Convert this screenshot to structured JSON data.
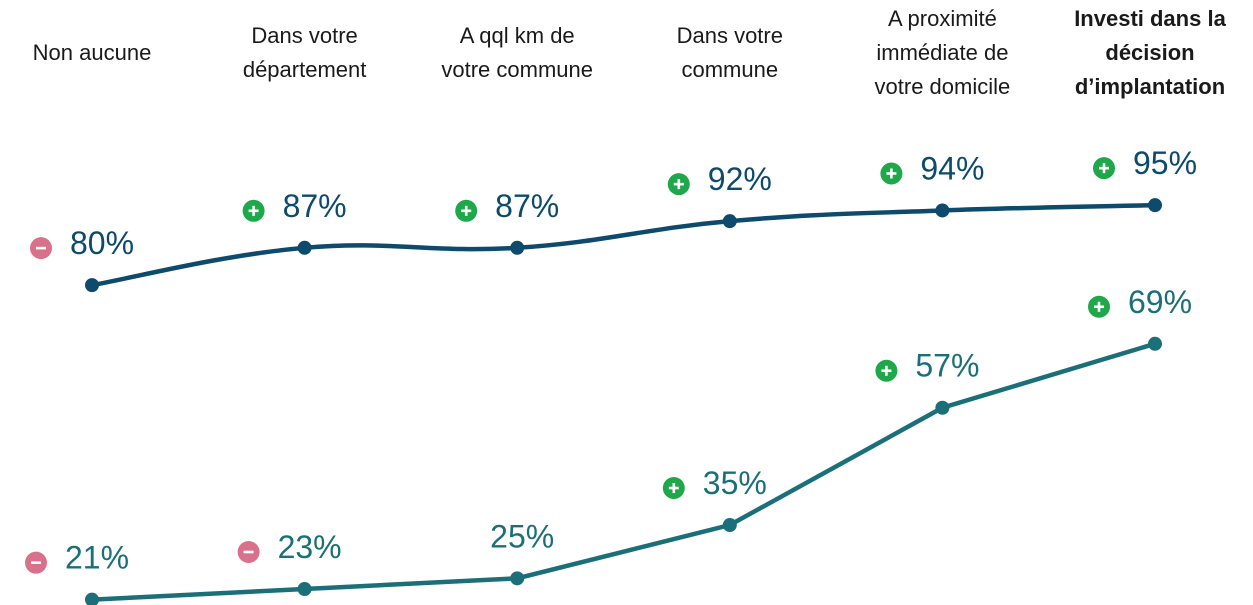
{
  "chart_data": {
    "type": "line",
    "categories": [
      "Non aucune",
      "Dans votre\ndépartement",
      "A qql km de\nvotre commune",
      "Dans votre\ncommune",
      "A proximité\nimmédiate de\nvotre domicile",
      "Investi dans la\ndécision\nd’implantation"
    ],
    "series": [
      {
        "color": "#0d4a6b",
        "smooth": true,
        "values": [
          80,
          87,
          87,
          92,
          94,
          95
        ],
        "value_labels": [
          "80%",
          "87%",
          "87%",
          "92%",
          "94%",
          "95%"
        ],
        "signs": [
          "-",
          "+",
          "+",
          "+",
          "+",
          "+"
        ]
      },
      {
        "color": "#1b6f79",
        "smooth": false,
        "values": [
          21,
          23,
          25,
          35,
          57,
          69
        ],
        "value_labels": [
          "21%",
          "23%",
          "25%",
          "35%",
          "57%",
          "69%"
        ],
        "signs": [
          "-",
          "-",
          null,
          "+",
          "+",
          "+"
        ]
      }
    ],
    "ylim": [
      20,
      100
    ]
  }
}
